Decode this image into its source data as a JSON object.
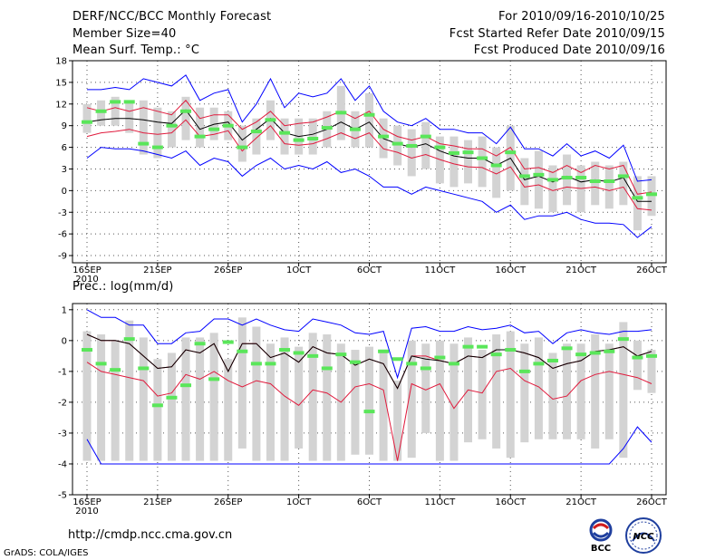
{
  "header": {
    "title": "DERF/NCC/BCC Monthly Forecast",
    "member_size": "Member Size=40",
    "panel1_label": "Mean Surf. Temp.: °C",
    "forecast_period": "For 2010/09/16-2010/10/25",
    "started_date": "Fcst Started Refer Date 2010/09/15",
    "produced_date": "Fcst Produced Date 2010/09/16"
  },
  "panel2_label": "Prec.: log(mm/d)",
  "footer": {
    "url": "http://cmdp.ncc.cma.gov.cn",
    "credit": "GrADS: COLA/IGES"
  },
  "logos": {
    "bcc": "BCC",
    "ncc": "NCC"
  },
  "colors": {
    "box": "#d3d3d3",
    "median": "#5ae65a",
    "spread": "#0000ff",
    "quartile": "#e01a3c",
    "mean": "#000000",
    "grid": "#555555"
  },
  "x_ticks": [
    {
      "i": 0,
      "label": "16SEP",
      "sub": "2010"
    },
    {
      "i": 5,
      "label": "21SEP",
      "sub": ""
    },
    {
      "i": 10,
      "label": "26SEP",
      "sub": ""
    },
    {
      "i": 15,
      "label": "1OCT",
      "sub": ""
    },
    {
      "i": 20,
      "label": "6OCT",
      "sub": ""
    },
    {
      "i": 25,
      "label": "11OCT",
      "sub": ""
    },
    {
      "i": 30,
      "label": "16OCT",
      "sub": ""
    },
    {
      "i": 35,
      "label": "21OCT",
      "sub": ""
    },
    {
      "i": 40,
      "label": "26OCT",
      "sub": ""
    }
  ],
  "chart_data": [
    {
      "type": "box",
      "title": "Mean Surf. Temp.: °C",
      "xlabel": "",
      "ylabel": "",
      "ylim": [
        -10,
        18
      ],
      "yticks": [
        18,
        15,
        12,
        9,
        6,
        3,
        0,
        -3,
        -6,
        -9
      ],
      "days": 40,
      "start": "16SEP2010",
      "grid": true,
      "series": [
        {
          "name": "max",
          "color": "#0000ff",
          "values": [
            14,
            14,
            14.3,
            14,
            15.5,
            15,
            14.5,
            16,
            12.5,
            13.5,
            14,
            9.5,
            12,
            15.5,
            11.5,
            13.5,
            13,
            13.5,
            15.5,
            12.5,
            14.5,
            11,
            9.5,
            9,
            10,
            8.5,
            8.5,
            8,
            8,
            6.5,
            8.8,
            5.8,
            5.8,
            4.8,
            6.5,
            4.8,
            5.5,
            4.5,
            6.3,
            1.3,
            1.5
          ]
        },
        {
          "name": "q75",
          "color": "#e01a3c",
          "values": [
            11.5,
            11,
            11.5,
            11,
            11.5,
            11,
            10.5,
            12.5,
            10,
            10.5,
            10.5,
            8.5,
            9.5,
            11,
            9,
            9.3,
            9.5,
            10.2,
            11,
            10,
            11,
            8.5,
            7.5,
            7,
            7.5,
            6.5,
            6.2,
            5.8,
            5.8,
            4.8,
            6,
            3,
            3.2,
            2.5,
            3.5,
            2.5,
            3.5,
            3,
            3.5,
            -0.5,
            -0.2
          ]
        },
        {
          "name": "mean",
          "color": "#000000",
          "values": [
            9.5,
            9.8,
            10,
            10,
            9.8,
            9.5,
            9.3,
            11.2,
            8.5,
            9.2,
            9.5,
            7,
            8.5,
            10,
            8,
            7.5,
            7.8,
            8.5,
            9.5,
            8.5,
            9.5,
            7.2,
            6.5,
            6,
            6.5,
            5.5,
            4.8,
            4.5,
            4.5,
            3.5,
            4.5,
            1.5,
            2,
            1.2,
            2,
            1.2,
            1.5,
            1.2,
            1.8,
            -1.5,
            -1.5
          ]
        },
        {
          "name": "q25",
          "color": "#e01a3c",
          "values": [
            7.5,
            8,
            8.2,
            8.5,
            8,
            7.8,
            8,
            9.8,
            7.5,
            7.8,
            8.3,
            5.5,
            7.3,
            9,
            6.5,
            6.3,
            6.5,
            7.2,
            8,
            7.2,
            8,
            5.8,
            5.3,
            4.5,
            5,
            4.3,
            3.7,
            3.3,
            3.2,
            2.3,
            3.3,
            0.5,
            0.8,
            0,
            0.5,
            0.3,
            0.5,
            0,
            0.5,
            -2.5,
            -2.7
          ]
        },
        {
          "name": "min",
          "color": "#0000ff",
          "values": [
            4.5,
            6,
            5.8,
            5.8,
            5.5,
            5,
            4.5,
            5.5,
            3.5,
            4.5,
            4,
            2,
            3.5,
            4.5,
            3,
            3.5,
            3,
            4,
            2.5,
            3,
            2,
            0.5,
            0.5,
            -0.5,
            0.5,
            0,
            -0.5,
            -1,
            -1.5,
            -3,
            -2,
            -4,
            -3.5,
            -3.5,
            -3,
            -4,
            -4.5,
            -4.5,
            -4.7,
            -6.5,
            -5
          ]
        }
      ],
      "boxes": [
        {
          "lo": 8,
          "hi": 12
        },
        {
          "lo": 9,
          "hi": 12.5
        },
        {
          "lo": 9,
          "hi": 13
        },
        {
          "lo": 8,
          "hi": 12.5
        },
        {
          "lo": 5,
          "hi": 12.5
        },
        {
          "lo": 4.5,
          "hi": 11.5
        },
        {
          "lo": 6,
          "hi": 11
        },
        {
          "lo": 7,
          "hi": 13
        },
        {
          "lo": 6,
          "hi": 11.5
        },
        {
          "lo": 7,
          "hi": 11.5
        },
        {
          "lo": 7,
          "hi": 11
        },
        {
          "lo": 4,
          "hi": 9
        },
        {
          "lo": 5,
          "hi": 10
        },
        {
          "lo": 7,
          "hi": 12.5
        },
        {
          "lo": 5,
          "hi": 10
        },
        {
          "lo": 5,
          "hi": 10
        },
        {
          "lo": 5,
          "hi": 10
        },
        {
          "lo": 6,
          "hi": 11
        },
        {
          "lo": 7,
          "hi": 14.5
        },
        {
          "lo": 6,
          "hi": 11
        },
        {
          "lo": 6,
          "hi": 13.5
        },
        {
          "lo": 4.5,
          "hi": 10
        },
        {
          "lo": 3.5,
          "hi": 9
        },
        {
          "lo": 2,
          "hi": 8.5
        },
        {
          "lo": 3,
          "hi": 9.5
        },
        {
          "lo": 1,
          "hi": 7.5
        },
        {
          "lo": 0.5,
          "hi": 7.5
        },
        {
          "lo": 1,
          "hi": 7
        },
        {
          "lo": 0.5,
          "hi": 7.5
        },
        {
          "lo": -1,
          "hi": 6
        },
        {
          "lo": 0,
          "hi": 9
        },
        {
          "lo": -2,
          "hi": 4.5
        },
        {
          "lo": -2.5,
          "hi": 5.5
        },
        {
          "lo": -3,
          "hi": 3.5
        },
        {
          "lo": -2,
          "hi": 5
        },
        {
          "lo": -3,
          "hi": 3.5
        },
        {
          "lo": -2,
          "hi": 4
        },
        {
          "lo": -2.5,
          "hi": 3.5
        },
        {
          "lo": -2,
          "hi": 4
        },
        {
          "lo": -5.5,
          "hi": 2
        },
        {
          "lo": -3.5,
          "hi": 2
        }
      ],
      "medians": [
        9.5,
        11,
        12.3,
        12.3,
        6.5,
        6,
        9,
        11,
        7.5,
        8.5,
        9,
        6,
        8.2,
        9.8,
        8,
        7,
        7.2,
        8.7,
        10.8,
        8.5,
        10.5,
        7.5,
        6.5,
        6.2,
        7.5,
        6,
        5.2,
        5.3,
        4.5,
        3.5,
        5.3,
        2,
        2.2,
        1.5,
        1.8,
        1.8,
        1.3,
        1.3,
        2,
        -1,
        -0.5
      ]
    },
    {
      "type": "box",
      "title": "Prec.: log(mm/d)",
      "xlabel": "",
      "ylabel": "",
      "ylim": [
        -5,
        1.2
      ],
      "yticks": [
        1,
        0,
        -1,
        -2,
        -3,
        -4,
        -5
      ],
      "days": 40,
      "start": "16SEP2010",
      "grid": true,
      "series": [
        {
          "name": "max",
          "color": "#0000ff",
          "values": [
            1,
            0.75,
            0.75,
            0.5,
            0.5,
            -0.1,
            -0.1,
            0.25,
            0.3,
            0.7,
            0.7,
            0.5,
            0.7,
            0.5,
            0.35,
            0.3,
            0.7,
            0.6,
            0.5,
            0.25,
            0.2,
            0.3,
            -1.2,
            0.4,
            0.45,
            0.3,
            0.3,
            0.45,
            0.35,
            0.4,
            0.5,
            0.25,
            0.3,
            -0.1,
            0.25,
            0.35,
            0.25,
            0.2,
            0.3,
            0.3,
            0.35
          ]
        },
        {
          "name": "q75",
          "color": "#e01a3c",
          "values": [
            0.2,
            0,
            0,
            -0.1,
            -0.5,
            -0.9,
            -0.85,
            -0.3,
            -0.4,
            -0.1,
            -1,
            -0.1,
            -0.1,
            -0.55,
            -0.4,
            -0.7,
            -0.2,
            -0.4,
            -0.45,
            -0.8,
            -0.6,
            -0.75,
            -1.55,
            -0.5,
            -0.5,
            -0.65,
            -0.75,
            -0.5,
            -0.55,
            -0.3,
            -0.3,
            -0.4,
            -0.55,
            -0.9,
            -0.75,
            -0.65,
            -0.35,
            -0.3,
            -0.2,
            -0.5,
            -0.35
          ]
        },
        {
          "name": "mean",
          "color": "#000000",
          "values": [
            0.2,
            0,
            0,
            -0.1,
            -0.5,
            -0.9,
            -0.85,
            -0.3,
            -0.4,
            -0.1,
            -1,
            -0.1,
            -0.1,
            -0.55,
            -0.4,
            -0.7,
            -0.2,
            -0.4,
            -0.45,
            -0.8,
            -0.6,
            -0.75,
            -1.55,
            -0.5,
            -0.6,
            -0.65,
            -0.75,
            -0.5,
            -0.55,
            -0.3,
            -0.3,
            -0.4,
            -0.55,
            -0.9,
            -0.75,
            -0.65,
            -0.35,
            -0.3,
            -0.2,
            -0.5,
            -0.35
          ]
        },
        {
          "name": "q25",
          "color": "#e01a3c",
          "values": [
            -0.7,
            -1,
            -1.1,
            -1.2,
            -1.3,
            -1.8,
            -1.7,
            -1.1,
            -1.25,
            -1,
            -1.3,
            -1.5,
            -1.3,
            -1.4,
            -1.8,
            -2.1,
            -1.6,
            -1.7,
            -2,
            -1.5,
            -1.4,
            -1.6,
            -3.9,
            -1.4,
            -1.6,
            -1.4,
            -2.2,
            -1.6,
            -1.7,
            -1,
            -0.9,
            -1.3,
            -1.5,
            -1.9,
            -1.8,
            -1.3,
            -1.1,
            -1,
            -1.1,
            -1.2,
            -1.4
          ]
        },
        {
          "name": "min",
          "color": "#0000ff",
          "values": [
            -3.2,
            -4,
            -4,
            -4,
            -4,
            -4,
            -4,
            -4,
            -4,
            -4,
            -4,
            -4,
            -4,
            -4,
            -4,
            -4,
            -4,
            -4,
            -4,
            -4,
            -4,
            -4,
            -4,
            -4,
            -4,
            -4,
            -4,
            -4,
            -4,
            -4,
            -4,
            -4,
            -4,
            -4,
            -4,
            -4,
            -4,
            -4,
            -3.5,
            -2.8,
            -3.3
          ]
        }
      ],
      "boxes": [
        {
          "lo": -3.9,
          "hi": 0.3
        },
        {
          "lo": -3.9,
          "hi": 0.2
        },
        {
          "lo": -3.9,
          "hi": 0
        },
        {
          "lo": -3.9,
          "hi": 0.65
        },
        {
          "lo": -3.9,
          "hi": 0.1
        },
        {
          "lo": -3.9,
          "hi": -0.6
        },
        {
          "lo": -3.9,
          "hi": -0.4
        },
        {
          "lo": -3.9,
          "hi": 0.1
        },
        {
          "lo": -3.9,
          "hi": 0.1
        },
        {
          "lo": -3.9,
          "hi": 0.25
        },
        {
          "lo": -3.9,
          "hi": -0.6
        },
        {
          "lo": -3.5,
          "hi": 0.75
        },
        {
          "lo": -3.9,
          "hi": 0.45
        },
        {
          "lo": -3.9,
          "hi": -0.1
        },
        {
          "lo": -3.9,
          "hi": 0.1
        },
        {
          "lo": -3.5,
          "hi": -0.2
        },
        {
          "lo": -3.9,
          "hi": 0.25
        },
        {
          "lo": -3.9,
          "hi": 0.2
        },
        {
          "lo": -3.9,
          "hi": -0.1
        },
        {
          "lo": -3.7,
          "hi": -0.3
        },
        {
          "lo": -3.7,
          "hi": -0.2
        },
        {
          "lo": -3.9,
          "hi": -0.3
        },
        {
          "lo": -3.9,
          "hi": -1.3
        },
        {
          "lo": -3.8,
          "hi": 0
        },
        {
          "lo": -3,
          "hi": -0.1
        },
        {
          "lo": -3.9,
          "hi": 0
        },
        {
          "lo": -3.9,
          "hi": -0.1
        },
        {
          "lo": -3.3,
          "hi": 0.1
        },
        {
          "lo": -3.2,
          "hi": -0.3
        },
        {
          "lo": -3.5,
          "hi": 0.2
        },
        {
          "lo": -3.8,
          "hi": 0.3
        },
        {
          "lo": -3.3,
          "hi": -0.1
        },
        {
          "lo": -3.2,
          "hi": 0.1
        },
        {
          "lo": -3.2,
          "hi": -0.4
        },
        {
          "lo": -3.2,
          "hi": -0.1
        },
        {
          "lo": -3.2,
          "hi": -0.1
        },
        {
          "lo": -3.5,
          "hi": 0.2
        },
        {
          "lo": -3.2,
          "hi": -0.1
        },
        {
          "lo": -3.8,
          "hi": 0.6
        },
        {
          "lo": -1.6,
          "hi": 0
        },
        {
          "lo": -1.7,
          "hi": -0.3
        }
      ],
      "medians": [
        -0.3,
        -0.75,
        -0.95,
        0.05,
        -0.9,
        -2.1,
        -1.85,
        -1.45,
        -0.1,
        -1.25,
        -0.05,
        -0.35,
        -0.75,
        -0.75,
        -0.3,
        -0.4,
        -0.5,
        -0.9,
        -0.45,
        -0.7,
        -2.3,
        -0.35,
        -0.6,
        -0.75,
        -0.9,
        -0.55,
        -0.75,
        -0.2,
        -0.2,
        -0.45,
        -0.3,
        -1,
        -0.75,
        -0.65,
        -0.25,
        -0.45,
        -0.4,
        -0.35,
        0.05,
        -0.55,
        -0.5
      ]
    }
  ]
}
